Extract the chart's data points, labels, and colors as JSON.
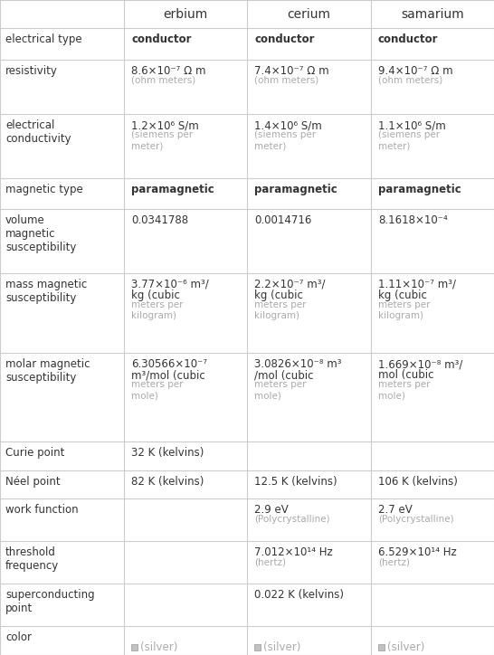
{
  "columns": [
    "",
    "erbium",
    "cerium",
    "samarium"
  ],
  "rows": [
    {
      "label": "electrical type",
      "values": [
        "conductor",
        "conductor",
        "conductor"
      ],
      "bold_values": [
        true,
        true,
        true
      ],
      "small_suffix": [
        "",
        "",
        ""
      ]
    },
    {
      "label": "resistivity",
      "values": [
        "8.6×10⁻⁷ Ω m\n(ohm meters)",
        "7.4×10⁻⁷ Ω m\n(ohm meters)",
        "9.4×10⁻⁷ Ω m\n(ohm meters)"
      ]
    },
    {
      "label": "electrical\nconductivity",
      "values": [
        "1.2×10⁶ S/m\n(siemens per\nmeter)",
        "1.4×10⁶ S/m\n(siemens per\nmeter)",
        "1.1×10⁶ S/m\n(siemens per\nmeter)"
      ]
    },
    {
      "label": "magnetic type",
      "values": [
        "paramagnetic",
        "paramagnetic",
        "paramagnetic"
      ],
      "bold_values": [
        true,
        true,
        true
      ]
    },
    {
      "label": "volume\nmagnetic\nsusceptibility",
      "values": [
        "0.0341788",
        "0.0014716",
        "8.1618×10⁻⁴"
      ]
    },
    {
      "label": "mass magnetic\nsusceptibility",
      "values": [
        "3.77×10⁻⁶ m³/\nkg (cubic\nmeters per\nkilogram)",
        "2.2×10⁻⁷ m³/\nkg (cubic\nmeters per\nkilogram)",
        "1.11×10⁻⁷ m³/\nkg (cubic\nmeters per\nkilogram)"
      ]
    },
    {
      "label": "molar magnetic\nsusceptibility",
      "values": [
        "6.30566×10⁻⁷\nm³/mol (cubic\nmeters per\nmole)",
        "3.0826×10⁻⁸ m³\n/mol (cubic\nmeters per\nmole)",
        "1.669×10⁻⁸ m³/\nmol (cubic\nmeters per\nmole)"
      ]
    },
    {
      "label": "Curie point",
      "values": [
        "32 K (kelvins)",
        "",
        ""
      ]
    },
    {
      "label": "Néel point",
      "values": [
        "82 K (kelvins)",
        "12.5 K (kelvins)",
        "106 K (kelvins)"
      ]
    },
    {
      "label": "work function",
      "values": [
        "",
        "2.9 eV\n(Polycrystalline)",
        "2.7 eV\n(Polycrystalline)"
      ]
    },
    {
      "label": "threshold\nfrequency",
      "values": [
        "",
        "7.012×10¹⁴ Hz\n(hertz)",
        "6.529×10¹⁴ Hz\n(hertz)"
      ]
    },
    {
      "label": "superconducting\npoint",
      "values": [
        "",
        "0.022 K (kelvins)",
        ""
      ]
    },
    {
      "label": "color",
      "values": [
        "■ (silver)",
        "■ (silver)",
        "■ (silver)"
      ],
      "color_swatch": true
    }
  ],
  "header_color": "#ffffff",
  "grid_color": "#cccccc",
  "bg_color": "#ffffff",
  "text_color": "#333333",
  "gray_text_color": "#aaaaaa",
  "silver_color": "#c0c0c0"
}
